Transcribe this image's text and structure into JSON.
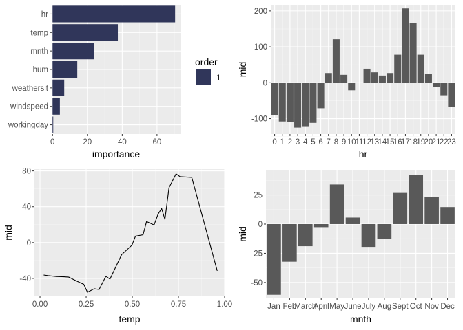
{
  "colors": {
    "panel_bg": "#EBEBEB",
    "grid_major": "#FFFFFF",
    "grid_minor": "#F5F5F5",
    "importance_bar": "#30365A",
    "mid_bar": "#595959",
    "line": "#000000",
    "tick": "#333333"
  },
  "chart_data": [
    {
      "id": "importance",
      "type": "bar",
      "orientation": "horizontal",
      "categories": [
        "hr",
        "temp",
        "mnth",
        "hum",
        "weathersit",
        "windspeed",
        "workingday"
      ],
      "values": [
        70.4,
        37.5,
        23.8,
        14.2,
        6.7,
        4.2,
        0.4
      ],
      "xlabel": "importance",
      "ylabel": "",
      "xlim": [
        -0.5,
        73.5
      ],
      "xticks": [
        0,
        20,
        40,
        60
      ],
      "xtick_labels": [
        "0",
        "20",
        "40",
        "60"
      ],
      "grid": true,
      "legend": {
        "title": "order",
        "entries": [
          "1"
        ],
        "placement": "right"
      }
    },
    {
      "id": "hr",
      "type": "bar",
      "categories": [
        "0",
        "1",
        "2",
        "3",
        "4",
        "5",
        "6",
        "7",
        "8",
        "9",
        "10",
        "11",
        "12",
        "13",
        "14",
        "15",
        "16",
        "17",
        "18",
        "19",
        "20",
        "21",
        "22",
        "23"
      ],
      "values": [
        -91,
        -108,
        -110,
        -125,
        -123,
        -112,
        -71,
        27,
        121,
        22,
        -21,
        -1,
        39,
        29,
        20,
        27,
        78,
        207,
        166,
        78,
        25,
        -12,
        -35,
        -68
      ],
      "xlabel": "hr",
      "ylabel": "mid",
      "ylim": [
        -143,
        217
      ],
      "yticks": [
        -100,
        0,
        100,
        200
      ],
      "ytick_labels": [
        "-100",
        "0",
        "100",
        "200"
      ],
      "grid": true
    },
    {
      "id": "temp",
      "type": "line",
      "x": [
        0.02,
        0.045,
        0.089,
        0.13,
        0.156,
        0.187,
        0.224,
        0.237,
        0.257,
        0.294,
        0.32,
        0.357,
        0.379,
        0.442,
        0.498,
        0.517,
        0.558,
        0.577,
        0.618,
        0.64,
        0.659,
        0.677,
        0.699,
        0.737,
        0.759,
        0.822,
        0.96
      ],
      "y": [
        -36.2,
        -36.9,
        -37.9,
        -38.2,
        -38.6,
        -41.7,
        -45.4,
        -46.5,
        -55.4,
        -51.5,
        -52.3,
        -37.6,
        -40.7,
        -13.5,
        -2.9,
        7.2,
        8.7,
        23.4,
        19.6,
        31.9,
        38.0,
        25.7,
        61.3,
        76.7,
        73.6,
        72.9,
        -31.5
      ],
      "xlabel": "temp",
      "ylabel": "mid",
      "xlim": [
        -0.03,
        1.0
      ],
      "ylim": [
        -60,
        82
      ],
      "xticks": [
        0.0,
        0.25,
        0.5,
        0.75,
        1.0
      ],
      "xtick_labels": [
        "0.00",
        "0.25",
        "0.50",
        "0.75",
        "1.00"
      ],
      "yticks": [
        -40,
        0,
        40,
        80
      ],
      "ytick_labels": [
        "-40",
        "0",
        "40",
        "80"
      ],
      "grid": true
    },
    {
      "id": "mnth",
      "type": "bar",
      "categories": [
        "Jan",
        "Feb",
        "March",
        "April",
        "May",
        "June",
        "July",
        "Aug",
        "Sept",
        "Oct",
        "Nov",
        "Dec"
      ],
      "values": [
        -60.5,
        -32.2,
        -18.9,
        -2.6,
        33.9,
        5.6,
        -19.5,
        -12.5,
        26.7,
        42.3,
        23.1,
        14.6
      ],
      "xlabel": "mnth",
      "ylabel": "mid",
      "ylim": [
        -63.6,
        46.5
      ],
      "yticks": [
        -50,
        -25,
        0,
        25
      ],
      "ytick_labels": [
        "-50",
        "-25",
        "0",
        "25"
      ],
      "grid": true
    }
  ]
}
